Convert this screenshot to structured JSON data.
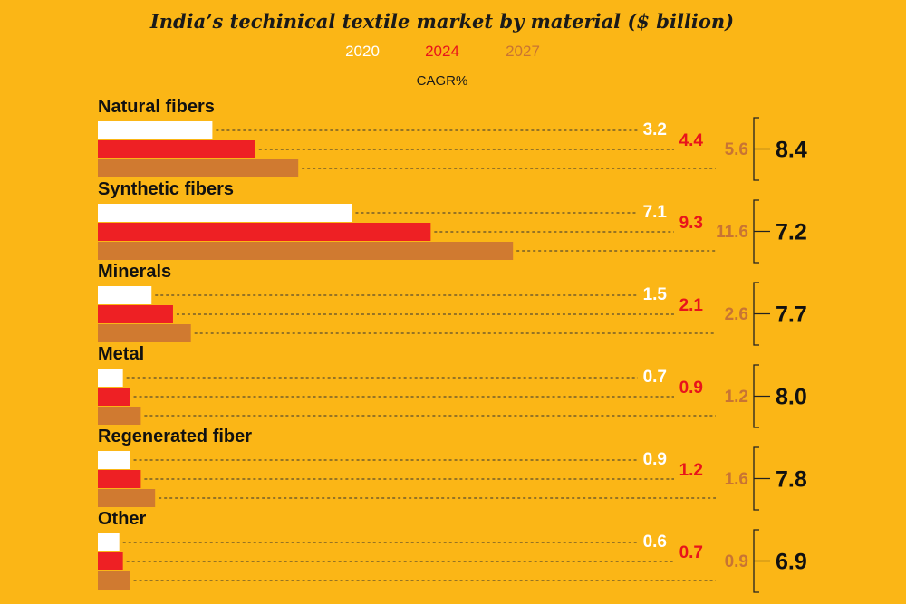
{
  "chart_data": {
    "type": "bar",
    "orientation": "horizontal",
    "title": "India’s techinical textile market by material ($ billion)",
    "categories": [
      "Natural fibers",
      "Synthetic fibers",
      "Minerals",
      "Metal",
      "Regenerated fiber",
      "Other"
    ],
    "series": [
      {
        "name": "2020",
        "values": [
          3.2,
          7.1,
          1.5,
          0.7,
          0.9,
          0.6
        ]
      },
      {
        "name": "2024",
        "values": [
          4.4,
          9.3,
          2.1,
          0.9,
          1.2,
          0.7
        ]
      },
      {
        "name": "2027",
        "values": [
          5.6,
          11.6,
          2.6,
          1.2,
          1.6,
          0.9
        ]
      }
    ],
    "cagr_header": "CAGR%",
    "cagr": [
      8.4,
      7.2,
      7.7,
      8.0,
      7.8,
      6.9
    ],
    "xlim": [
      0,
      12
    ],
    "legend": "top-center",
    "grid": false
  },
  "colors": {
    "background": "#FBB616",
    "series": [
      "#FFFFFF",
      "#EE2024",
      "#D07A30"
    ],
    "text": [
      "#FFFFFF",
      "#E8141B",
      "#C87433"
    ]
  }
}
